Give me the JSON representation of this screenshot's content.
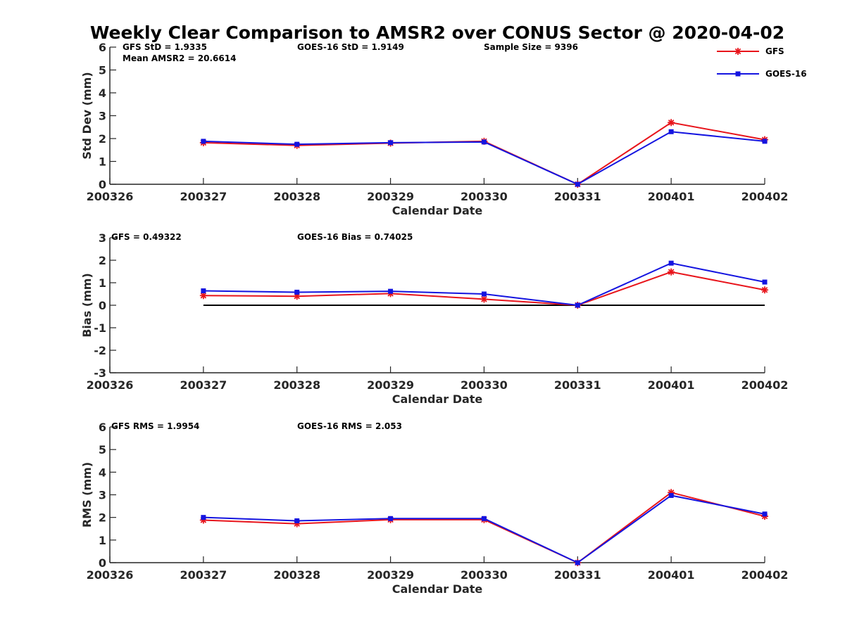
{
  "title": "Weekly Clear Comparison to AMSR2 over CONUS Sector @ 2020-04-02",
  "colors": {
    "GFS": "#e8141b",
    "GOES-16": "#1414e0",
    "zero_line": "#000000"
  },
  "legend": {
    "placement": "top-right",
    "entries": [
      {
        "name": "GFS",
        "marker": "asterisk"
      },
      {
        "name": "GOES-16",
        "marker": "square"
      }
    ]
  },
  "chart_data": [
    {
      "type": "line",
      "ylabel": "Std Dev (mm)",
      "xlabel": "Calendar Date",
      "categories": [
        "200326",
        "200327",
        "200328",
        "200329",
        "200330",
        "200331",
        "200401",
        "200402"
      ],
      "ylim": [
        0,
        6
      ],
      "yticks": [
        "0",
        "1",
        "2",
        "3",
        "4",
        "5",
        "6"
      ],
      "annotations": [
        "GFS StD = 1.9335",
        "GOES-16 StD = 1.9149",
        "Sample Size = 9396",
        "Mean AMSR2 = 20.6614"
      ],
      "series": [
        {
          "name": "GFS",
          "x": [
            "200327",
            "200328",
            "200329",
            "200330",
            "200331",
            "200401",
            "200402"
          ],
          "values": [
            1.82,
            1.7,
            1.8,
            1.88,
            0.0,
            2.7,
            1.95
          ]
        },
        {
          "name": "GOES-16",
          "x": [
            "200327",
            "200328",
            "200329",
            "200330",
            "200331",
            "200401",
            "200402"
          ],
          "values": [
            1.88,
            1.75,
            1.82,
            1.85,
            0.0,
            2.3,
            1.88
          ]
        }
      ]
    },
    {
      "type": "line",
      "ylabel": "Bias (mm)",
      "xlabel": "Calendar Date",
      "categories": [
        "200326",
        "200327",
        "200328",
        "200329",
        "200330",
        "200331",
        "200401",
        "200402"
      ],
      "ylim": [
        -3,
        3
      ],
      "yticks": [
        "-3",
        "-2",
        "-1",
        "0",
        "1",
        "2",
        "3"
      ],
      "zero_line": true,
      "annotations": [
        "GFS = 0.49322",
        "GOES-16 Bias  = 0.74025"
      ],
      "series": [
        {
          "name": "GFS",
          "x": [
            "200327",
            "200328",
            "200329",
            "200330",
            "200331",
            "200401",
            "200402"
          ],
          "values": [
            0.43,
            0.4,
            0.52,
            0.27,
            0.0,
            1.48,
            0.68
          ]
        },
        {
          "name": "GOES-16",
          "x": [
            "200327",
            "200328",
            "200329",
            "200330",
            "200331",
            "200401",
            "200402"
          ],
          "values": [
            0.64,
            0.58,
            0.62,
            0.5,
            0.0,
            1.87,
            1.03
          ]
        }
      ]
    },
    {
      "type": "line",
      "ylabel": "RMS (mm)",
      "xlabel": "Calendar Date",
      "categories": [
        "200326",
        "200327",
        "200328",
        "200329",
        "200330",
        "200331",
        "200401",
        "200402"
      ],
      "ylim": [
        0,
        6
      ],
      "yticks": [
        "0",
        "1",
        "2",
        "3",
        "4",
        "5",
        "6"
      ],
      "annotations": [
        "GFS RMS = 1.9954",
        "GOES-16 RMS = 2.053"
      ],
      "series": [
        {
          "name": "GFS",
          "x": [
            "200327",
            "200328",
            "200329",
            "200330",
            "200331",
            "200401",
            "200402"
          ],
          "values": [
            1.88,
            1.72,
            1.9,
            1.9,
            0.0,
            3.1,
            2.05
          ]
        },
        {
          "name": "GOES-16",
          "x": [
            "200327",
            "200328",
            "200329",
            "200330",
            "200331",
            "200401",
            "200402"
          ],
          "values": [
            2.0,
            1.85,
            1.95,
            1.95,
            0.0,
            2.97,
            2.15
          ]
        }
      ]
    }
  ]
}
